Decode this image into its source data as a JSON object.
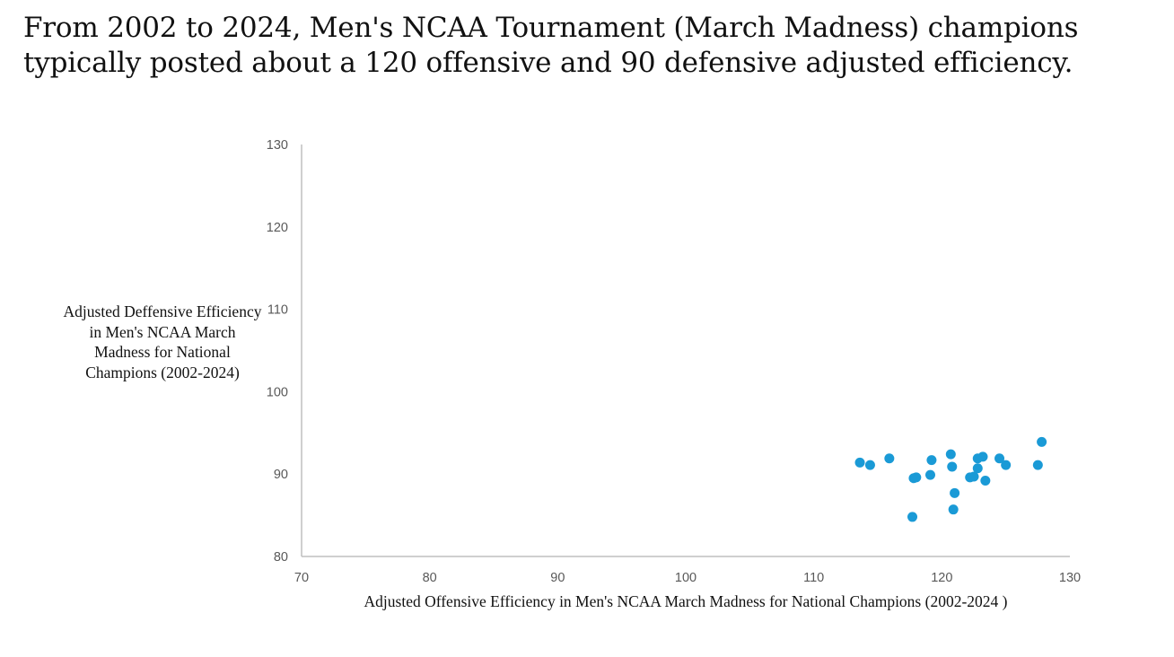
{
  "title": "From 2002 to 2024, Men's NCAA Tournament (March Madness) champions typically posted about a 120 offensive and 90 defensive adjusted efficiency.",
  "chart_data": {
    "type": "scatter",
    "title": "",
    "xlabel": "Adjusted Offensive Efficiency in Men's NCAA March Madness for National Champions (2002-2024 )",
    "ylabel": "Adjusted Deffensive Efficiency in Men's NCAA March Madness for National Champions (2002-2024)",
    "xlim": [
      70,
      130
    ],
    "ylim": [
      80,
      130
    ],
    "xticks": [
      "70",
      "80",
      "90",
      "100",
      "110",
      "120",
      "130"
    ],
    "yticks": [
      "80",
      "90",
      "100",
      "110",
      "120",
      "130"
    ],
    "grid": false,
    "legend": "none",
    "point_color": "#1a9ad6",
    "axis_color": "#bfbfbf",
    "points": [
      {
        "x": 113.6,
        "y": 91.4
      },
      {
        "x": 114.4,
        "y": 91.1
      },
      {
        "x": 115.9,
        "y": 91.9
      },
      {
        "x": 117.7,
        "y": 84.8
      },
      {
        "x": 117.8,
        "y": 89.5
      },
      {
        "x": 118.0,
        "y": 89.6
      },
      {
        "x": 119.1,
        "y": 89.9
      },
      {
        "x": 119.2,
        "y": 91.7
      },
      {
        "x": 120.7,
        "y": 92.4
      },
      {
        "x": 120.9,
        "y": 85.7
      },
      {
        "x": 120.8,
        "y": 90.9
      },
      {
        "x": 121.0,
        "y": 87.7
      },
      {
        "x": 122.2,
        "y": 89.6
      },
      {
        "x": 122.5,
        "y": 89.7
      },
      {
        "x": 122.8,
        "y": 90.7
      },
      {
        "x": 122.8,
        "y": 91.9
      },
      {
        "x": 123.2,
        "y": 92.1
      },
      {
        "x": 123.4,
        "y": 89.2
      },
      {
        "x": 124.5,
        "y": 91.9
      },
      {
        "x": 125.0,
        "y": 91.1
      },
      {
        "x": 127.5,
        "y": 91.1
      },
      {
        "x": 127.8,
        "y": 93.9
      }
    ]
  }
}
